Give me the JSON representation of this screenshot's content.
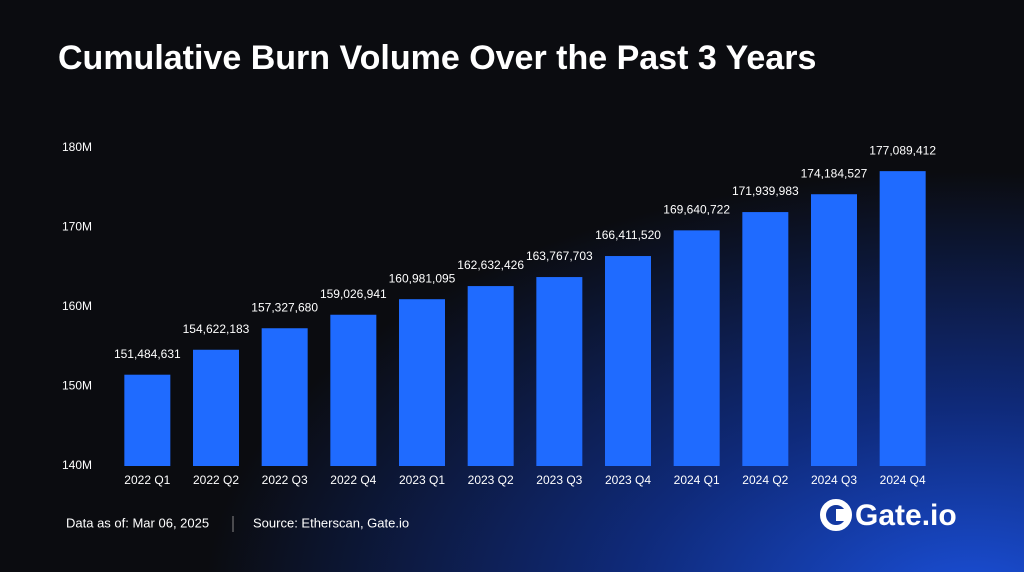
{
  "chart_data": {
    "type": "bar",
    "title": "Cumulative Burn Volume Over the Past 3 Years",
    "categories": [
      "2022 Q1",
      "2022 Q2",
      "2022 Q3",
      "2022 Q4",
      "2023 Q1",
      "2023 Q2",
      "2023 Q3",
      "2023 Q4",
      "2024 Q1",
      "2024 Q2",
      "2024 Q3",
      "2024 Q4"
    ],
    "values": [
      151484631,
      154622183,
      157327680,
      159026941,
      160981095,
      162632426,
      163767703,
      166411520,
      169640722,
      171939983,
      174184527,
      177089412
    ],
    "value_labels": [
      "151,484,631",
      "154,622,183",
      "157,327,680",
      "159,026,941",
      "160,981,095",
      "162,632,426",
      "163,767,703",
      "166,411,520",
      "169,640,722",
      "171,939,983",
      "174,184,527",
      "177,089,412"
    ],
    "color": "#1f6bff",
    "ylim": [
      140000000,
      180000000
    ],
    "yticks": [
      {
        "value": 140000000,
        "label": "140M"
      },
      {
        "value": 150000000,
        "label": "150M"
      },
      {
        "value": 160000000,
        "label": "160M"
      },
      {
        "value": 170000000,
        "label": "170M"
      },
      {
        "value": 180000000,
        "label": "180M"
      }
    ],
    "grid": false,
    "notes": [
      "Data as of: Mar 06, 2025",
      "Source: Etherscan, Gate.io"
    ],
    "brand": "Gate.io"
  }
}
